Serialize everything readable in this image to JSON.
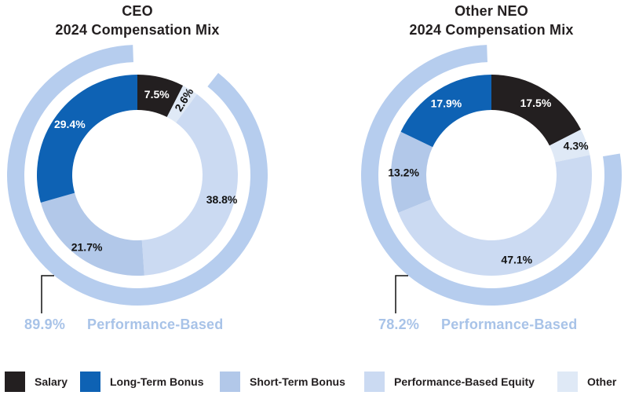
{
  "colors": {
    "salary": "#231f20",
    "long_term_bonus": "#0e62b4",
    "short_term_bonus": "#b2c8e9",
    "performance_equity": "#cbdaf2",
    "other": "#dfe9f6",
    "ring": "#b6cdee",
    "callout_text": "#a8c3e8"
  },
  "chart_data": [
    {
      "type": "pie",
      "subtype": "donut-with-outer-ring",
      "title_lines": [
        "CEO",
        "2024 Compensation Mix"
      ],
      "segments": [
        {
          "name": "Salary",
          "key": "salary",
          "value": 7.5,
          "label": "7.5%",
          "label_color": "#ffffff",
          "label_r": 106
        },
        {
          "name": "Other",
          "key": "other",
          "value": 2.6,
          "label": "2.6%",
          "label_color": "#111111",
          "label_r": 113,
          "label_radial": true
        },
        {
          "name": "Performance-Based Equity",
          "key": "performance_equity",
          "value": 38.8,
          "label": "38.8%",
          "label_color": "#111111",
          "label_r": 112
        },
        {
          "name": "Short-Term Bonus",
          "key": "short_term_bonus",
          "value": 21.7,
          "label": "21.7%",
          "label_color": "#111111",
          "label_r": 112
        },
        {
          "name": "Long-Term Bonus",
          "key": "long_term_bonus",
          "value": 29.4,
          "label": "29.4%",
          "label_color": "#ffffff",
          "label_r": 108
        }
      ],
      "outer_ring": {
        "coverage_pct": 89.9,
        "label": "89.9%",
        "text": "Performance-Based"
      }
    },
    {
      "type": "pie",
      "subtype": "donut-with-outer-ring",
      "title_lines": [
        "Other NEO",
        "2024 Compensation Mix"
      ],
      "segments": [
        {
          "name": "Salary",
          "key": "salary",
          "value": 17.5,
          "label": "17.5%",
          "label_color": "#ffffff",
          "label_r": 108
        },
        {
          "name": "Other",
          "key": "other",
          "value": 4.3,
          "label": "4.3%",
          "label_color": "#111111",
          "label_r": 114
        },
        {
          "name": "Performance-Based Equity",
          "key": "performance_equity",
          "value": 47.1,
          "label": "47.1%",
          "label_color": "#111111",
          "label_r": 112
        },
        {
          "name": "Short-Term Bonus",
          "key": "short_term_bonus",
          "value": 13.2,
          "label": "13.2%",
          "label_color": "#111111",
          "label_r": 112
        },
        {
          "name": "Long-Term Bonus",
          "key": "long_term_bonus",
          "value": 17.9,
          "label": "17.9%",
          "label_color": "#ffffff",
          "label_r": 108
        }
      ],
      "outer_ring": {
        "coverage_pct": 78.2,
        "label": "78.2%",
        "text": "Performance-Based"
      }
    }
  ],
  "legend": [
    {
      "key": "salary",
      "label": "Salary"
    },
    {
      "key": "long_term_bonus",
      "label": "Long-Term Bonus"
    },
    {
      "key": "short_term_bonus",
      "label": "Short-Term Bonus"
    },
    {
      "key": "performance_equity",
      "label": "Performance-Based Equity"
    },
    {
      "key": "other",
      "label": "Other"
    }
  ]
}
